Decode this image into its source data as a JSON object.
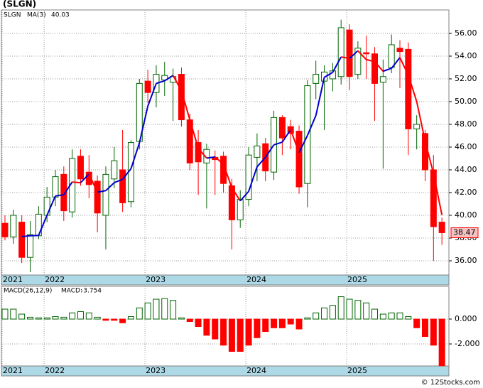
{
  "chart_data": [
    {
      "type": "candlestick",
      "title": "(SLGN)",
      "legend_name": "SLGN",
      "categories": [
        "2021",
        null,
        null,
        null,
        null,
        "2022",
        null,
        null,
        null,
        null,
        null,
        null,
        null,
        null,
        null,
        null,
        null,
        "2023",
        null,
        null,
        null,
        null,
        null,
        null,
        null,
        null,
        null,
        null,
        null,
        "2024",
        null,
        null,
        null,
        null,
        null,
        null,
        null,
        null,
        null,
        null,
        null,
        "2025",
        null,
        null,
        null,
        null,
        null,
        null,
        null,
        null,
        null,
        null,
        null
      ],
      "open": [
        39.3,
        38.1,
        39.4,
        36.3,
        38.2,
        40.0,
        41.6,
        43.6,
        40.3,
        45.2,
        43.8,
        43.0,
        40.0,
        43.2,
        44.0,
        41.2,
        46.5,
        51.8,
        50.8,
        51.9,
        51.7,
        52.4,
        48.4,
        46.4,
        44.6,
        45.1,
        45.2,
        42.6,
        39.6,
        41.4,
        45.1,
        46.3,
        43.8,
        48.6,
        47.8,
        47.4,
        42.8,
        51.6,
        51.8,
        52.0,
        52.2,
        56.3,
        52.4,
        54.3,
        54.2,
        51.7,
        53.0,
        54.7,
        54.6,
        47.6,
        47.2,
        44.0,
        39.4
      ],
      "high": [
        40.0,
        40.5,
        40.0,
        39.5,
        40.8,
        42.5,
        44.0,
        44.3,
        45.8,
        45.8,
        45.3,
        43.5,
        44.3,
        46.0,
        47.5,
        46.6,
        52.0,
        52.8,
        53.2,
        53.5,
        52.9,
        53.0,
        48.9,
        47.5,
        46.3,
        45.7,
        45.6,
        43.2,
        42.2,
        46.0,
        47.2,
        46.8,
        49.2,
        48.8,
        48.4,
        47.9,
        51.9,
        53.6,
        53.2,
        53.4,
        57.2,
        56.8,
        55.3,
        55.8,
        54.8,
        53.7,
        55.9,
        55.4,
        55.2,
        48.8,
        47.5,
        45.3,
        39.8
      ],
      "low": [
        37.8,
        37.5,
        35.8,
        35.0,
        37.9,
        39.4,
        40.8,
        39.5,
        39.8,
        42.6,
        41.5,
        38.5,
        37.0,
        42.4,
        40.3,
        40.7,
        45.8,
        49.9,
        49.5,
        50.5,
        48.3,
        47.8,
        44.0,
        41.8,
        40.6,
        41.8,
        42.0,
        37.0,
        38.9,
        40.8,
        43.0,
        43.0,
        43.1,
        45.3,
        45.8,
        41.9,
        40.7,
        50.2,
        47.5,
        50.9,
        51.5,
        51.0,
        52.0,
        52.0,
        48.3,
        44.1,
        52.5,
        51.2,
        45.3,
        45.8,
        43.0,
        36.0,
        37.4
      ],
      "close": [
        38.1,
        40.0,
        36.3,
        38.3,
        40.1,
        41.6,
        43.4,
        40.4,
        45.0,
        43.2,
        42.7,
        40.2,
        43.6,
        44.8,
        41.1,
        46.4,
        51.6,
        50.8,
        52.4,
        52.3,
        52.2,
        48.4,
        44.6,
        44.7,
        45.8,
        44.9,
        42.8,
        39.6,
        41.4,
        45.3,
        46.1,
        43.9,
        48.6,
        46.8,
        47.2,
        42.5,
        51.4,
        52.4,
        52.6,
        52.7,
        56.5,
        52.2,
        54.7,
        54.2,
        51.6,
        52.2,
        55.0,
        54.4,
        47.6,
        48.0,
        44.0,
        39.0,
        38.47
      ],
      "up_color": "#006400",
      "down_color": "#ff0000",
      "ma": {
        "name": "MA(3)",
        "up_color": "#0000cc",
        "down_color": "#ff0000",
        "values": [
          null,
          null,
          38.13,
          38.2,
          38.23,
          40.0,
          41.7,
          41.8,
          42.93,
          42.87,
          43.63,
          42.03,
          42.17,
          42.87,
          43.17,
          44.1,
          46.37,
          49.6,
          51.6,
          51.83,
          52.3,
          50.97,
          48.4,
          45.9,
          45.03,
          45.13,
          44.5,
          42.43,
          41.27,
          42.1,
          44.27,
          45.1,
          46.2,
          46.43,
          47.53,
          45.5,
          47.03,
          48.77,
          52.13,
          52.57,
          53.93,
          53.8,
          54.47,
          53.7,
          53.5,
          52.67,
          52.93,
          53.87,
          52.33,
          50.0,
          46.53,
          43.67,
          40.03
        ]
      },
      "ylim": [
        34.75,
        58.06
      ],
      "yticks": [
        {
          "value": 36,
          "label": "36.00"
        },
        {
          "value": 38,
          "label": "38.00"
        },
        {
          "value": 40,
          "label": "40.00"
        },
        {
          "value": 42,
          "label": "42.00"
        },
        {
          "value": 44,
          "label": "44.00"
        },
        {
          "value": 46,
          "label": "46.00"
        },
        {
          "value": 48,
          "label": "48.00"
        },
        {
          "value": 50,
          "label": "50.00"
        },
        {
          "value": 52,
          "label": "52.00"
        },
        {
          "value": 54,
          "label": "54.00"
        },
        {
          "value": 56,
          "label": "56.00"
        }
      ],
      "grid": true
    },
    {
      "type": "bar",
      "name": "MACD(26,12,9)",
      "value_prefix": "MACD:",
      "categories": [
        "2021",
        null,
        null,
        null,
        null,
        "2022",
        null,
        null,
        null,
        null,
        null,
        null,
        null,
        null,
        null,
        null,
        null,
        "2023",
        null,
        null,
        null,
        null,
        null,
        null,
        null,
        null,
        null,
        null,
        null,
        "2024",
        null,
        null,
        null,
        null,
        null,
        null,
        null,
        null,
        null,
        null,
        null,
        "2025",
        null,
        null,
        null,
        null,
        null,
        null,
        null,
        null,
        null,
        null,
        null
      ],
      "values": [
        0.8,
        0.8,
        0.4,
        0.15,
        0.1,
        0.1,
        0.2,
        0.15,
        0.5,
        0.6,
        0.5,
        0.15,
        -0.1,
        -0.1,
        -0.3,
        0.2,
        0.9,
        1.3,
        1.6,
        1.65,
        1.5,
        0.1,
        -0.2,
        -0.6,
        -1.3,
        -1.6,
        -2.1,
        -2.6,
        -2.6,
        -2.1,
        -1.5,
        -1.0,
        -0.7,
        -0.7,
        -0.4,
        -0.8,
        0.1,
        0.5,
        0.9,
        1.1,
        1.8,
        1.6,
        1.5,
        1.3,
        0.8,
        0.4,
        0.5,
        0.5,
        0.2,
        -0.7,
        -1.4,
        -2.1,
        -3.754
      ],
      "up_color": "#006400",
      "down_color": "#ff0000",
      "ylim": [
        -3.77,
        2.63
      ],
      "yticks": [
        {
          "value": 0,
          "label": "0.000"
        },
        {
          "value": -2,
          "label": "-2.000"
        }
      ],
      "grid": true
    }
  ],
  "watermark": "© 12Stocks.com"
}
